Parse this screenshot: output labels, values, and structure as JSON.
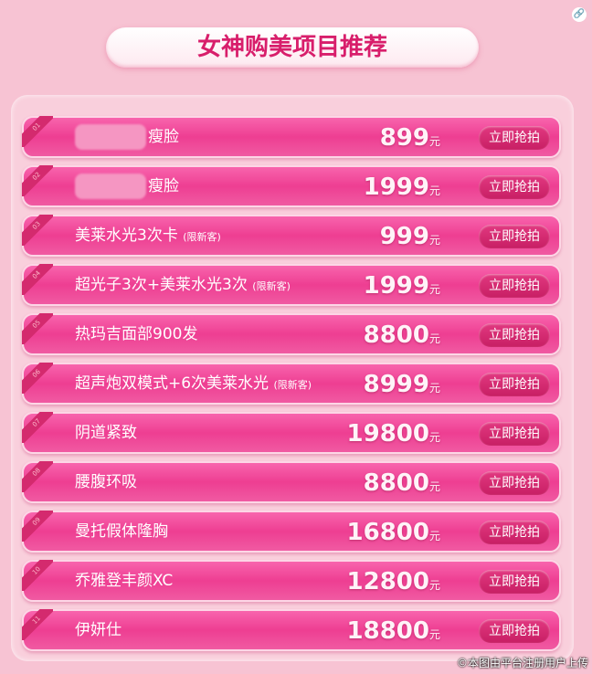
{
  "title": "女神购美项目推荐",
  "currency": "元",
  "button_label": "立即抢拍",
  "watermark": "©本图由平台注册用户上传",
  "items": [
    {
      "rank": "01",
      "name": "瘦脸",
      "note": "",
      "price": "899",
      "redacted": true
    },
    {
      "rank": "02",
      "name": "瘦脸",
      "note": "",
      "price": "1999",
      "redacted": true
    },
    {
      "rank": "03",
      "name": "美莱水光3次卡",
      "note": "(限新客)",
      "price": "999"
    },
    {
      "rank": "04",
      "name": "超光子3次+美莱水光3次",
      "note": "(限新客)",
      "price": "1999"
    },
    {
      "rank": "05",
      "name": "热玛吉面部900发",
      "note": "",
      "price": "8800"
    },
    {
      "rank": "06",
      "name": "超声炮双模式+6次美莱水光",
      "note": "(限新客)",
      "price": "8999"
    },
    {
      "rank": "07",
      "name": "阴道紧致",
      "note": "",
      "price": "19800"
    },
    {
      "rank": "08",
      "name": "腰腹环吸",
      "note": "",
      "price": "8800"
    },
    {
      "rank": "09",
      "name": "曼托假体隆胸",
      "note": "",
      "price": "16800"
    },
    {
      "rank": "10",
      "name": "乔雅登丰颜XC",
      "note": "",
      "price": "12800"
    },
    {
      "rank": "11",
      "name": "伊妍仕",
      "note": "",
      "price": "18800"
    }
  ]
}
